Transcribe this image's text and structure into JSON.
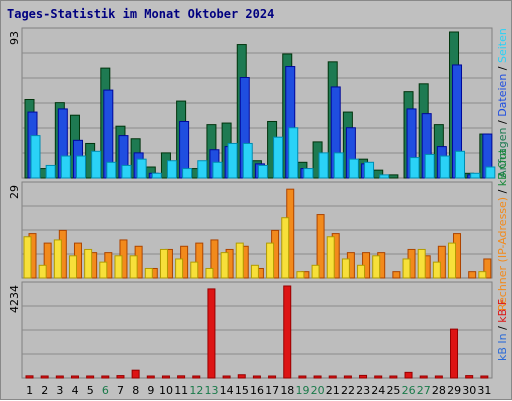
{
  "title": "Tages-Statistik im Monat Oktober 2024",
  "colors": {
    "anfragen": "#1e7a52",
    "dateien": "#1f4ee0",
    "seiten": "#2ad2f7",
    "rechner": "#f28a1c",
    "out": "#f7e03a",
    "in": "#2a6ad8",
    "f": "#dd1414",
    "weekday": "#000000",
    "weekend": "#1a7a4a"
  },
  "chart_data": [
    {
      "type": "bar",
      "panel": "top",
      "ymax_label": "93",
      "ymax": 93,
      "right_label_parts": [
        {
          "text": "Anfragen",
          "color": "#1e7a52"
        },
        {
          "text": " / ",
          "color": "#000000"
        },
        {
          "text": "Dateien",
          "color": "#1f4ee0"
        },
        {
          "text": " / ",
          "color": "#000000"
        },
        {
          "text": "Seiten",
          "color": "#2ad2f7"
        }
      ],
      "categories": [
        "1",
        "2",
        "3",
        "4",
        "5",
        "6",
        "7",
        "8",
        "9",
        "10",
        "11",
        "12",
        "13",
        "14",
        "15",
        "16",
        "17",
        "18",
        "19",
        "20",
        "21",
        "22",
        "23",
        "24",
        "25",
        "26",
        "27",
        "28",
        "29",
        "30",
        "31"
      ],
      "series": [
        {
          "name": "Anfragen",
          "values": [
            50,
            6,
            48,
            40,
            22,
            70,
            33,
            25,
            7,
            16,
            49,
            6,
            34,
            35,
            85,
            11,
            36,
            79,
            10,
            23,
            74,
            42,
            12,
            5,
            2,
            55,
            60,
            34,
            93,
            3,
            28
          ]
        },
        {
          "name": "Dateien",
          "values": [
            42,
            0,
            44,
            24,
            0,
            56,
            27,
            16,
            3,
            0,
            36,
            0,
            18,
            20,
            64,
            9,
            0,
            71,
            6,
            0,
            58,
            32,
            9,
            0,
            0,
            44,
            41,
            20,
            72,
            2,
            28
          ]
        },
        {
          "name": "Seiten",
          "values": [
            27,
            8,
            14,
            14,
            17,
            10,
            8,
            12,
            3,
            11,
            6,
            11,
            10,
            22,
            22,
            8,
            26,
            32,
            6,
            16,
            16,
            12,
            10,
            2,
            0,
            13,
            15,
            14,
            17,
            3,
            7
          ]
        }
      ]
    },
    {
      "type": "bar",
      "panel": "middle",
      "ymax_label": "29",
      "ymax": 29,
      "right_label_parts": [
        {
          "text": "Rechner (IP-Adresse)",
          "color": "#f28a1c"
        },
        {
          "text": " / ",
          "color": "#000000"
        },
        {
          "text": "kB Out",
          "color": "#1a8a3a"
        }
      ],
      "categories": [
        "1",
        "2",
        "3",
        "4",
        "5",
        "6",
        "7",
        "8",
        "9",
        "10",
        "11",
        "12",
        "13",
        "14",
        "15",
        "16",
        "17",
        "18",
        "19",
        "20",
        "21",
        "22",
        "23",
        "24",
        "25",
        "26",
        "27",
        "28",
        "29",
        "30",
        "31"
      ],
      "series": [
        {
          "name": "Rechner (IP-Adresse)",
          "values": [
            14,
            11,
            15,
            11,
            8,
            8,
            12,
            10,
            3,
            9,
            10,
            11,
            12,
            9,
            10,
            3,
            15,
            28,
            2,
            20,
            14,
            8,
            8,
            8,
            2,
            9,
            7,
            10,
            14,
            2,
            6
          ]
        },
        {
          "name": "kB Out",
          "values": [
            13,
            4,
            12,
            7,
            9,
            5,
            7,
            7,
            3,
            9,
            6,
            5,
            3,
            8,
            11,
            4,
            11,
            19,
            2,
            4,
            13,
            6,
            4,
            7,
            0,
            6,
            9,
            5,
            11,
            0,
            2
          ]
        }
      ]
    },
    {
      "type": "bar",
      "panel": "bottom",
      "ymax_label": "4234",
      "ymax": 4234,
      "right_label_parts": [
        {
          "text": "kB In",
          "color": "#2a6ad8"
        },
        {
          "text": " / ",
          "color": "#000000"
        },
        {
          "text": "kB F",
          "color": "#dd1414"
        }
      ],
      "categories": [
        "1",
        "2",
        "3",
        "4",
        "5",
        "6",
        "7",
        "8",
        "9",
        "10",
        "11",
        "12",
        "13",
        "14",
        "15",
        "16",
        "17",
        "18",
        "19",
        "20",
        "21",
        "22",
        "23",
        "24",
        "25",
        "26",
        "27",
        "28",
        "29",
        "30",
        "31"
      ],
      "series": [
        {
          "name": "kB F",
          "values": [
            100,
            40,
            40,
            40,
            60,
            40,
            110,
            360,
            40,
            60,
            100,
            40,
            4100,
            50,
            150,
            40,
            40,
            4234,
            40,
            40,
            40,
            40,
            120,
            40,
            50,
            260,
            40,
            40,
            2250,
            110,
            40
          ]
        }
      ],
      "weekend_days": [
        6,
        12,
        13,
        19,
        20,
        26,
        27
      ]
    }
  ]
}
